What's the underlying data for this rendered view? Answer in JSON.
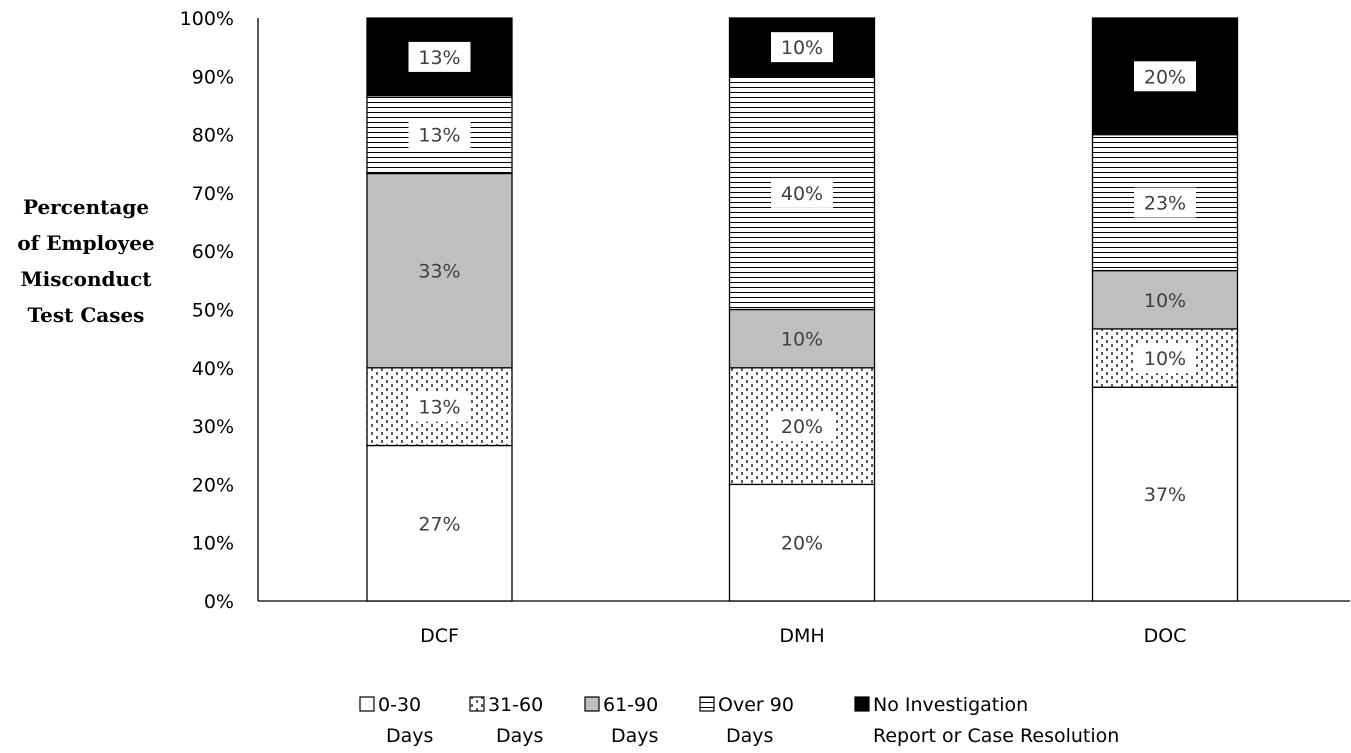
{
  "chart_data": {
    "type": "bar",
    "stacked": true,
    "ylabel_lines": [
      "Percentage",
      "of Employee",
      "Misconduct",
      "Test Cases"
    ],
    "ylim": [
      0,
      100
    ],
    "y_ticks": [
      "0%",
      "10%",
      "20%",
      "30%",
      "40%",
      "50%",
      "60%",
      "70%",
      "80%",
      "90%",
      "100%"
    ],
    "categories": [
      "DCF",
      "DMH",
      "DOC"
    ],
    "grid": false,
    "legend_position": "bottom",
    "series": [
      {
        "name": "0-30 Days",
        "legend_lines": [
          "0-30",
          "Days"
        ],
        "pattern": "white",
        "values": [
          26.67,
          20,
          36.67
        ],
        "labels": [
          "27%",
          "20%",
          "37%"
        ]
      },
      {
        "name": "31-60 Days",
        "legend_lines": [
          "31-60",
          "Days"
        ],
        "pattern": "dots",
        "values": [
          13.33,
          20,
          10
        ],
        "labels": [
          "13%",
          "20%",
          "10%"
        ]
      },
      {
        "name": "61-90 Days",
        "legend_lines": [
          "61-90",
          "Days"
        ],
        "pattern": "gray",
        "values": [
          33.33,
          10,
          10
        ],
        "labels": [
          "33%",
          "10%",
          "10%"
        ]
      },
      {
        "name": "Over 90 Days",
        "legend_lines": [
          "Over 90",
          "Days"
        ],
        "pattern": "hlines",
        "values": [
          13.33,
          40,
          23.33
        ],
        "labels": [
          "13%",
          "40%",
          "23%"
        ]
      },
      {
        "name": "No Investigation Report or Case Resolution",
        "legend_lines": [
          "No Investigation",
          "Report or Case Resolution"
        ],
        "pattern": "black",
        "values": [
          13.33,
          10,
          20
        ],
        "labels": [
          "13%",
          "10%",
          "20%"
        ]
      }
    ],
    "colors": {
      "gray": "#bfbfbf",
      "black": "#000000",
      "white": "#ffffff"
    }
  }
}
